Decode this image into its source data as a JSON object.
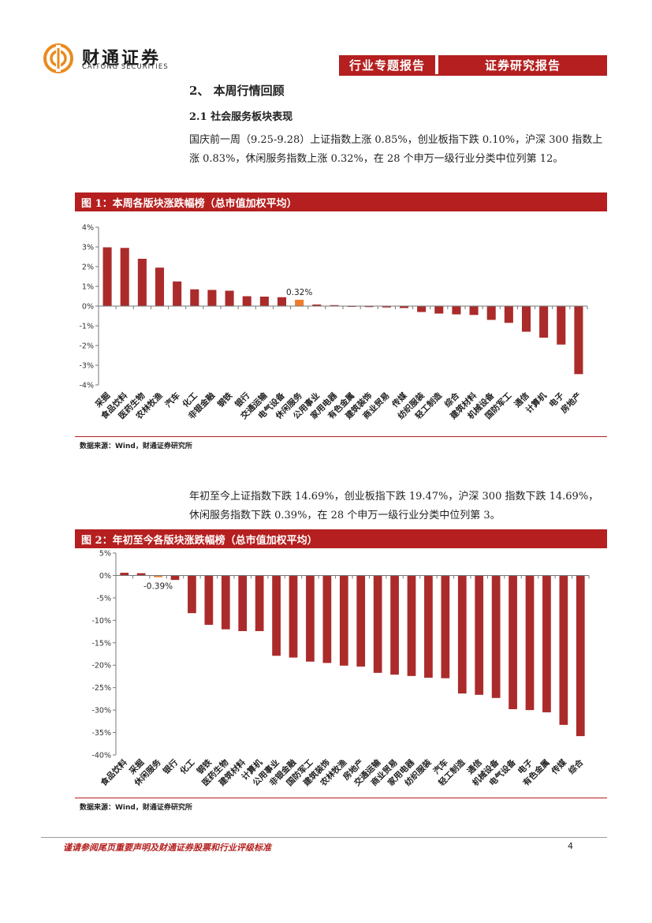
{
  "header": {
    "logo_cn": "财通证券",
    "logo_en": "CAITONG SECURITIES",
    "tag_left": "行业专题报告",
    "tag_right": "证券研究报告"
  },
  "section": {
    "title": "2、 本周行情回顾",
    "subtitle": "2.1  社会服务板块表现"
  },
  "para1": "国庆前一周（9.25-9.28）上证指数上涨 0.85%，创业板指下跌 0.10%，沪深 300 指数上涨 0.83%，休闲服务指数上涨 0.32%，在 28 个申万一级行业分类中位列第 12。",
  "para2": "年初至今上证指数下跌 14.69%，创业板指下跌 19.47%，沪深 300 指数下跌 14.69%，休闲服务指数下跌 0.39%，在 28 个申万一级行业分类中位列第 3。",
  "figure1": {
    "title": "图 1：本周各版块涨跌幅榜（总市值加权平均）",
    "source": "数据来源：Wind，财通证券研究所"
  },
  "figure2": {
    "title": "图 2：年初至今各版块涨跌幅榜（总市值加权平均）",
    "source": "数据来源：Wind，财通证券研究所"
  },
  "chart_data": [
    {
      "type": "bar",
      "categories": [
        "采掘",
        "食品饮料",
        "医药生物",
        "农林牧渔",
        "汽车",
        "化工",
        "非银金融",
        "钢铁",
        "银行",
        "交通运输",
        "电气设备",
        "休闲服务",
        "公用事业",
        "家用电器",
        "有色金属",
        "建筑装饰",
        "商业贸易",
        "传媒",
        "纺织服装",
        "轻工制造",
        "综合",
        "建筑材料",
        "机械设备",
        "国防军工",
        "通信",
        "计算机",
        "电子",
        "房地产"
      ],
      "values": [
        2.98,
        2.95,
        2.4,
        1.95,
        1.25,
        0.85,
        0.82,
        0.78,
        0.5,
        0.48,
        0.45,
        0.32,
        0.08,
        0.05,
        -0.03,
        -0.05,
        -0.07,
        -0.1,
        -0.3,
        -0.38,
        -0.42,
        -0.45,
        -0.7,
        -0.85,
        -1.3,
        -1.6,
        -1.95,
        -3.45
      ],
      "highlight_index": 11,
      "highlight_label": "0.32%",
      "ylim": [
        -4,
        4
      ],
      "yticks": [
        "4%",
        "3%",
        "2%",
        "1%",
        "0%",
        "-1%",
        "-2%",
        "-3%",
        "-4%"
      ],
      "colors": {
        "bar": "#ab2b2b",
        "highlight": "#ee7d2e"
      }
    },
    {
      "type": "bar",
      "categories": [
        "食品饮料",
        "采掘",
        "休闲服务",
        "银行",
        "化工",
        "钢铁",
        "医药生物",
        "建筑材料",
        "计算机",
        "公用事业",
        "非银金融",
        "国防军工",
        "建筑装饰",
        "农林牧渔",
        "房地产",
        "交通运输",
        "商业贸易",
        "家用电器",
        "纺织服装",
        "汽车",
        "轻工制造",
        "通信",
        "机械设备",
        "电气设备",
        "电子",
        "有色金属",
        "传媒",
        "综合"
      ],
      "values": [
        0.6,
        0.5,
        -0.39,
        -1.0,
        -8.4,
        -11.0,
        -12.0,
        -12.4,
        -12.4,
        -17.9,
        -18.3,
        -19.2,
        -19.5,
        -20.1,
        -20.3,
        -21.7,
        -22.1,
        -22.4,
        -22.8,
        -22.9,
        -26.3,
        -26.6,
        -27.3,
        -29.8,
        -30.0,
        -30.5,
        -33.3,
        -35.8
      ],
      "highlight_index": 2,
      "highlight_label": "-0.39%",
      "ylim": [
        -40,
        5
      ],
      "yticks": [
        "5%",
        "0%",
        "-5%",
        "-10%",
        "-15%",
        "-20%",
        "-25%",
        "-30%",
        "-35%",
        "-40%"
      ],
      "colors": {
        "bar": "#ab2b2b",
        "highlight": "#ee7d2e"
      }
    }
  ],
  "footer": {
    "disclaimer": "谨请参阅尾页重要声明及财通证券股票和行业评级标准",
    "page": "4"
  }
}
